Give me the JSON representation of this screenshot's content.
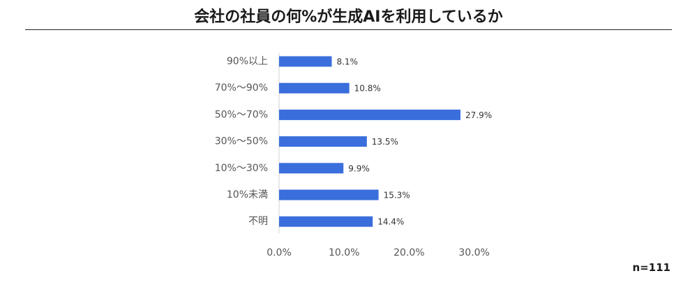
{
  "chart_data": {
    "type": "bar",
    "orientation": "horizontal",
    "title": "会社の社員の何%が生成AIを利用しているか",
    "categories": [
      "90%以上",
      "70%～90%",
      "50%～70%",
      "30%～50%",
      "10%～30%",
      "10%未満",
      "不明"
    ],
    "values": [
      8.1,
      10.8,
      27.9,
      13.5,
      9.9,
      15.3,
      14.4
    ],
    "value_labels": [
      "8.1%",
      "10.8%",
      "27.9%",
      "13.5%",
      "9.9%",
      "15.3%",
      "14.4%"
    ],
    "xlim": [
      0,
      30
    ],
    "xticks": [
      "0.0%",
      "10.0%",
      "20.0%",
      "30.0%"
    ],
    "bar_color": "#3a6edc",
    "grid": false,
    "legend": "none",
    "note": "n=111"
  }
}
